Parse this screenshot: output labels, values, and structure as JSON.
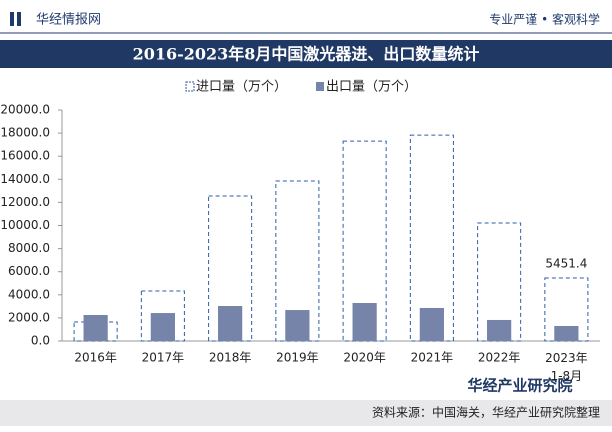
{
  "header": {
    "brand": "华经情报网",
    "slogan": "专业严谨 • 客观科学"
  },
  "chart_data": {
    "type": "bar",
    "title": "2016-2023年8月中国激光器进、出口数量统计",
    "categories": [
      "2016年",
      "2017年",
      "2018年",
      "2019年",
      "2020年",
      "2021年",
      "2022年",
      "2023年1-8月"
    ],
    "series": [
      {
        "name": "进口量（万个）",
        "color": "#2e5ea8",
        "style": "dashed",
        "values": [
          1650,
          4330,
          12550,
          13850,
          17300,
          17830,
          10220,
          5451.4
        ],
        "value_labels": [
          null,
          null,
          null,
          null,
          null,
          null,
          null,
          "5451.4"
        ]
      },
      {
        "name": "出口量（万个）",
        "color": "#7584a8",
        "style": "filled",
        "values": [
          2250,
          2420,
          3030,
          2680,
          3290,
          2860,
          1820,
          1300
        ]
      }
    ],
    "ylim": [
      0,
      20000
    ],
    "yticks": [
      {
        "value": 0,
        "label": "0.0"
      },
      {
        "value": 2000,
        "label": "2000.0"
      },
      {
        "value": 4000,
        "label": "4000.0"
      },
      {
        "value": 6000,
        "label": "6000.0"
      },
      {
        "value": 8000,
        "label": "8000.0"
      },
      {
        "value": 10000,
        "label": "10000.0"
      },
      {
        "value": 12000,
        "label": "12000.0"
      },
      {
        "value": 14000,
        "label": "14000.0"
      },
      {
        "value": 16000,
        "label": "16000.0"
      },
      {
        "value": 18000,
        "label": "18000.0"
      },
      {
        "value": 20000,
        "label": "20000.0"
      }
    ],
    "grid": false
  },
  "footer": {
    "source": "资料来源：中国海关，华经产业研究院整理",
    "logo": "华经产业研究院"
  }
}
